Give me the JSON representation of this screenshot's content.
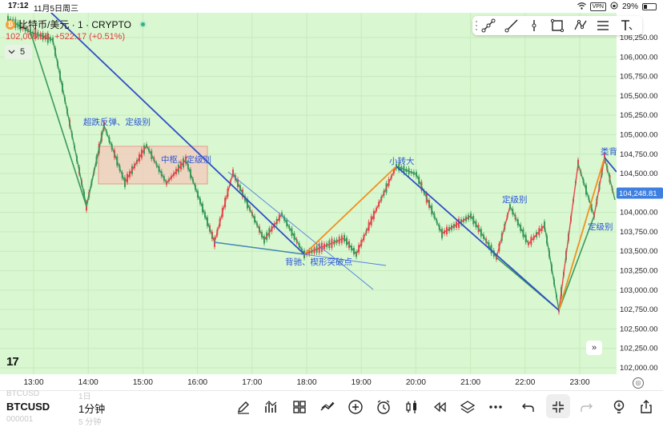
{
  "status_bar": {
    "time": "17:12",
    "date": "11月5日周三",
    "vpn": "VPN",
    "battery": "29%"
  },
  "symbol": {
    "coin_glyph": "₿",
    "name": "比特币/美元 · 1 · CRYPTO",
    "price": "102,006.58",
    "change": "+522.17 (+0.51%)"
  },
  "interval": {
    "label": "5"
  },
  "price_axis": {
    "labels": [
      "106,250.00",
      "106,000.00",
      "105,750.00",
      "105,500.00",
      "105,250.00",
      "105,000.00",
      "104,750.00",
      "104,500.00",
      "104,250.00",
      "104,000.00",
      "103,750.00",
      "103,500.00",
      "103,250.00",
      "103,000.00",
      "102,750.00",
      "102,500.00",
      "102,250.00",
      "102,000.00"
    ],
    "current_price": "104,248.81"
  },
  "time_axis": {
    "labels": [
      "13:00",
      "14:00",
      "15:00",
      "16:00",
      "17:00",
      "18:00",
      "19:00",
      "20:00",
      "21:00",
      "22:00",
      "23:00"
    ]
  },
  "annotations": {
    "a1": "超跌反弹、定级别",
    "a2": "中枢、定级别",
    "a3": "背驰、楔形突破点",
    "a4": "小转大",
    "a5": "定级别",
    "a6": "定级别",
    "a7": "类背"
  },
  "colors": {
    "up": "#e4474b",
    "down": "#3a9a5b",
    "chart_bg": "#d9f7d0",
    "trend_line": "#2f4fc7",
    "orange_line": "#f0911d",
    "zone_fill": "#f4c9be"
  },
  "toolbar": {
    "drawing_tools": [
      "trend-line-icon",
      "ray-line-icon",
      "vertical-line-icon",
      "rectangle-icon",
      "pattern-icon",
      "horizontal-lines-icon",
      "text-icon"
    ]
  },
  "logo": {
    "text": "17"
  },
  "goto_label": "»",
  "bottom_bar": {
    "symbol": "BTCUSD",
    "interval": "1分钟",
    "ghost_symbol_prev": "BTCUSD",
    "ghost_interval_prev": "1日",
    "ghost_symbol_next": "000001",
    "ghost_interval_next": "5 分钟",
    "icons": [
      "pen-icon",
      "indicators-icon",
      "templates-icon",
      "drawings-icon",
      "add-icon",
      "alert-icon",
      "candle-type-icon",
      "replay-icon",
      "layers-icon",
      "more-icon",
      "undo-icon",
      "collapse-icon",
      "redo-icon",
      "idea-icon",
      "share-icon"
    ]
  }
}
